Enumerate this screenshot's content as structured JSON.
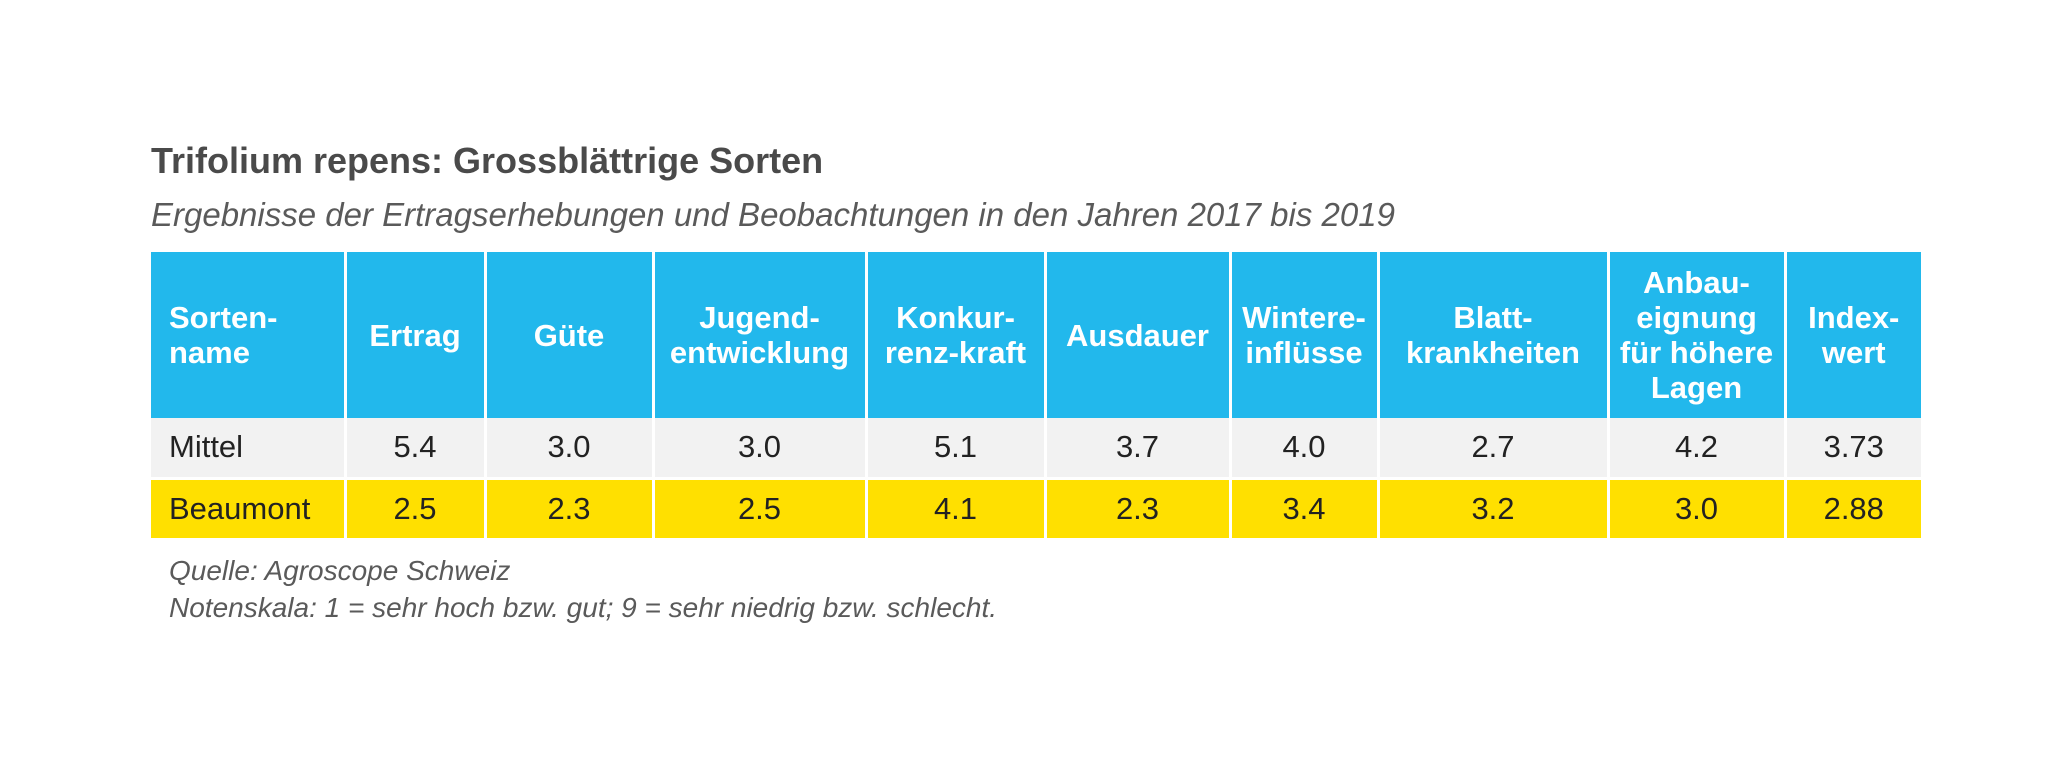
{
  "title": "Trifolium repens: Grossblättrige Sorten",
  "subtitle": "Ergebnisse der Ertragserhebungen und Beobachtungen in den Jahren 2017 bis 2019",
  "table": {
    "headers": [
      [
        "Sorten-",
        "name"
      ],
      [
        "Ertrag"
      ],
      [
        "Güte"
      ],
      [
        "Jugend-",
        "entwicklung"
      ],
      [
        "Konkur-",
        "renz-kraft"
      ],
      [
        "Ausdauer"
      ],
      [
        "Wintere-",
        "inflüsse"
      ],
      [
        "Blatt-",
        "krankheiten"
      ],
      [
        "Anbau-",
        "eignung",
        "für höhere",
        "Lagen"
      ],
      [
        "Index-",
        "wert"
      ]
    ],
    "rows": [
      [
        "Mittel",
        "5.4",
        "3.0",
        "3.0",
        "5.1",
        "3.7",
        "4.0",
        "2.7",
        "4.2",
        "3.73"
      ],
      [
        "Beaumont",
        "2.5",
        "2.3",
        "2.5",
        "4.1",
        "2.3",
        "3.4",
        "3.2",
        "3.0",
        "2.88"
      ]
    ]
  },
  "notes": {
    "source": "Quelle: Agroscope Schweiz",
    "scale": "Notenskala: 1 = sehr hoch bzw. gut; 9 = sehr niedrig bzw. schlecht."
  },
  "colors": {
    "header_bg": "#22b8ec",
    "row_mittel_bg": "#f2f2f2",
    "row_beaumont_bg": "#ffe000"
  }
}
